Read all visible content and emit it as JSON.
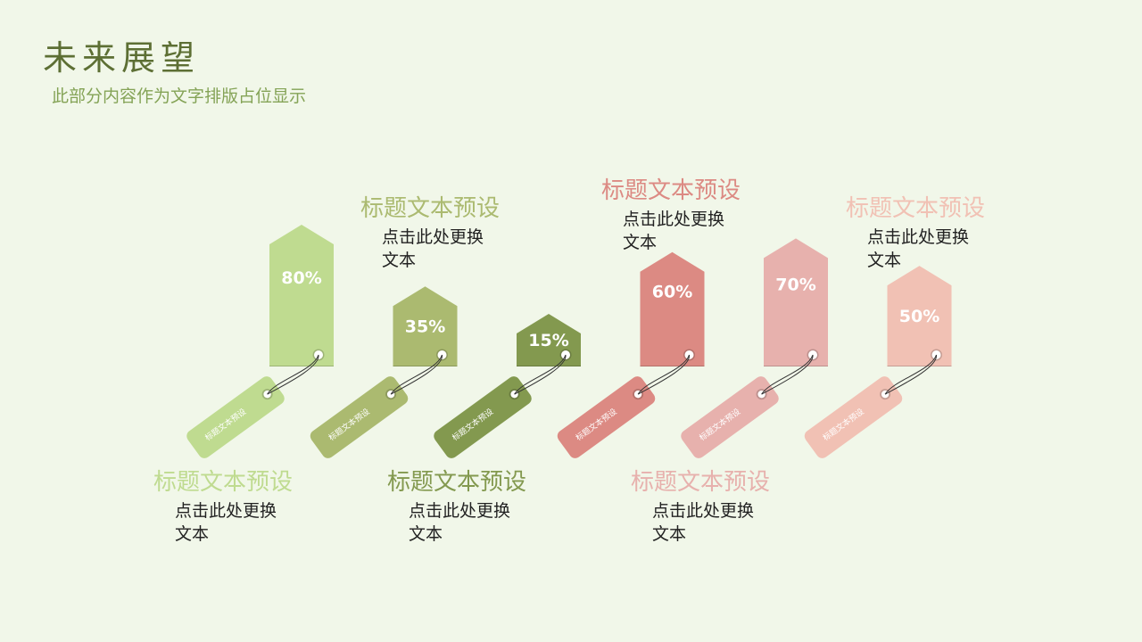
{
  "page": {
    "title": "未来展望",
    "subtitle": "此部分内容作为文字排版占位显示"
  },
  "colors": {
    "background": "#f1f7e9",
    "title": "#5d6f34",
    "subtitle": "#84a356"
  },
  "chart_data": {
    "type": "bar",
    "style": "price tags",
    "categories": [
      "标题文本预设",
      "标题文本预设",
      "标题文本预设",
      "标题文本预设",
      "标题文本预设",
      "标题文本预设"
    ],
    "values": [
      80,
      35,
      15,
      60,
      70,
      50
    ],
    "value_labels": [
      "80%",
      "35%",
      "15%",
      "60%",
      "70%",
      "50%"
    ],
    "tag_labels": [
      "标题文本预设",
      "标题文本预设",
      "标题文本预设",
      "标题文本预设",
      "标题文本预设",
      "标题文本预设"
    ],
    "colors": [
      "#bfdb90",
      "#abba70",
      "#83994f",
      "#dc8a83",
      "#e7b1ad",
      "#f1c1b4"
    ]
  },
  "annotations": [
    {
      "title": "标题文本预设",
      "body": "点击此处更换文本",
      "color": "#bfdb90"
    },
    {
      "title": "标题文本预设",
      "body": "点击此处更换文本",
      "color": "#abba70"
    },
    {
      "title": "标题文本预设",
      "body": "点击此处更换文本",
      "color": "#83994f"
    },
    {
      "title": "标题文本预设",
      "body": "点击此处更换文本",
      "color": "#dc8a83"
    },
    {
      "title": "标题文本预设",
      "body": "点击此处更换文本",
      "color": "#e7b1ad"
    },
    {
      "title": "标题文本预设",
      "body": "点击此处更换文本",
      "color": "#f1c1b4"
    }
  ]
}
